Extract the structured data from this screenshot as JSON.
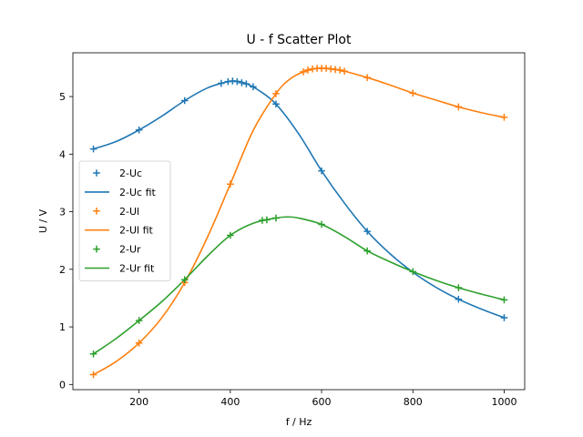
{
  "chart_data": {
    "type": "scatter",
    "title": "U - f Scatter Plot",
    "xlabel": "f / Hz",
    "ylabel": "U / V",
    "xlim": [
      55,
      1045
    ],
    "ylim": [
      -0.09,
      5.76
    ],
    "xticks": [
      200,
      400,
      600,
      800,
      1000
    ],
    "yticks": [
      0,
      1,
      2,
      3,
      4,
      5
    ],
    "grid": false,
    "legend_position": "center-left",
    "series": [
      {
        "name": "2-Uc",
        "color": "#1f77b4",
        "x": [
          100,
          200,
          300,
          380,
          395,
          405,
          415,
          425,
          435,
          450,
          500,
          600,
          700,
          900,
          1000
        ],
        "y": [
          4.09,
          4.42,
          4.93,
          5.23,
          5.26,
          5.27,
          5.26,
          5.24,
          5.22,
          5.17,
          4.87,
          3.71,
          2.66,
          1.48,
          1.16
        ]
      },
      {
        "name": "2-Uc fit",
        "color": "#1f77b4",
        "x": [
          100,
          150,
          200,
          250,
          300,
          350,
          390,
          410,
          430,
          460,
          500,
          550,
          600,
          650,
          700,
          750,
          800,
          850,
          900,
          950,
          1000
        ],
        "y": [
          4.09,
          4.22,
          4.42,
          4.66,
          4.93,
          5.15,
          5.25,
          5.27,
          5.24,
          5.12,
          4.87,
          4.35,
          3.71,
          3.15,
          2.66,
          2.27,
          1.95,
          1.69,
          1.48,
          1.31,
          1.16
        ]
      },
      {
        "name": "2-Ul",
        "color": "#ff7f0e",
        "x": [
          100,
          200,
          300,
          400,
          500,
          560,
          570,
          580,
          590,
          600,
          610,
          620,
          630,
          640,
          650,
          700,
          800,
          900,
          1000
        ],
        "y": [
          0.17,
          0.72,
          1.77,
          3.48,
          5.05,
          5.43,
          5.46,
          5.48,
          5.49,
          5.49,
          5.49,
          5.48,
          5.47,
          5.46,
          5.44,
          5.33,
          5.06,
          4.82,
          4.64
        ]
      },
      {
        "name": "2-Ul fit",
        "color": "#ff7f0e",
        "x": [
          100,
          150,
          200,
          250,
          300,
          350,
          400,
          450,
          500,
          530,
          560,
          590,
          610,
          640,
          700,
          750,
          800,
          850,
          900,
          950,
          1000
        ],
        "y": [
          0.17,
          0.4,
          0.72,
          1.16,
          1.77,
          2.56,
          3.48,
          4.41,
          5.05,
          5.3,
          5.43,
          5.49,
          5.49,
          5.46,
          5.33,
          5.2,
          5.06,
          4.94,
          4.82,
          4.72,
          4.64
        ]
      },
      {
        "name": "2-Ur",
        "color": "#2ca02c",
        "x": [
          100,
          200,
          300,
          400,
          470,
          480,
          500,
          600,
          700,
          800,
          900,
          1000
        ],
        "y": [
          0.53,
          1.11,
          1.82,
          2.59,
          2.85,
          2.86,
          2.89,
          2.78,
          2.32,
          1.96,
          1.68,
          1.47
        ]
      },
      {
        "name": "2-Ur fit",
        "color": "#2ca02c",
        "x": [
          100,
          150,
          200,
          250,
          300,
          350,
          400,
          450,
          500,
          525,
          550,
          600,
          650,
          700,
          750,
          800,
          850,
          900,
          950,
          1000
        ],
        "y": [
          0.53,
          0.8,
          1.11,
          1.44,
          1.82,
          2.23,
          2.59,
          2.8,
          2.89,
          2.91,
          2.89,
          2.78,
          2.57,
          2.32,
          2.13,
          1.96,
          1.81,
          1.68,
          1.57,
          1.47
        ]
      }
    ]
  }
}
